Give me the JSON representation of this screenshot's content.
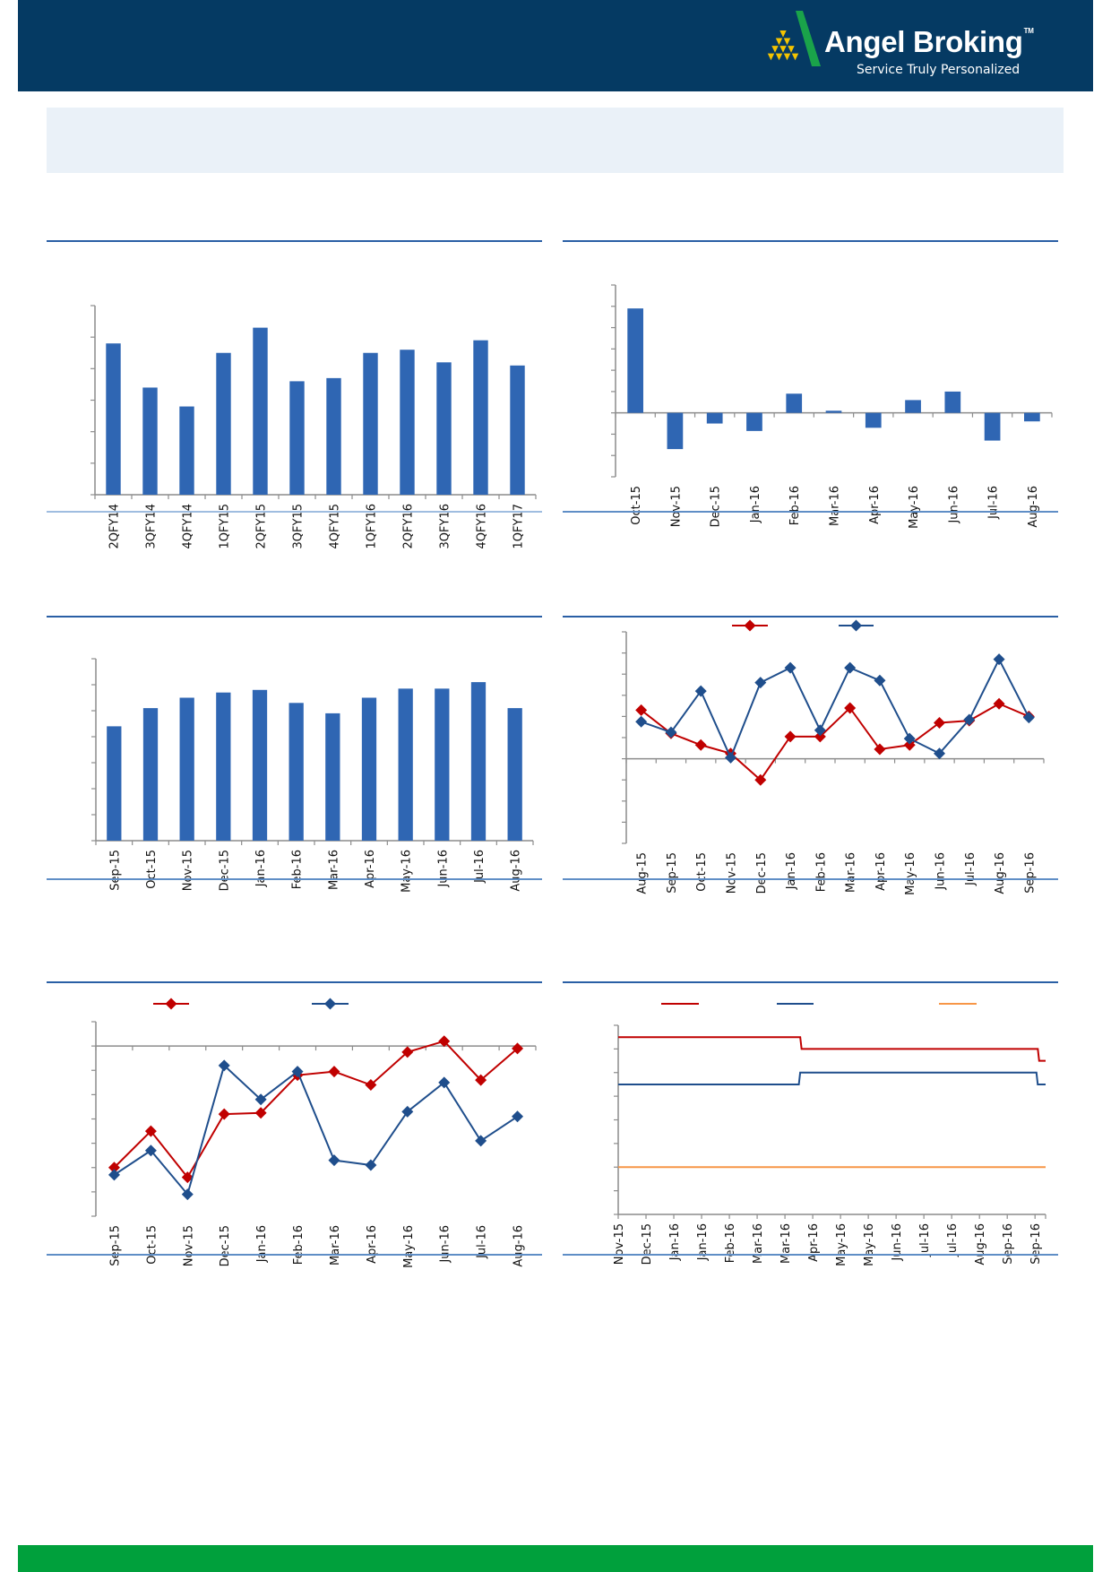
{
  "header": {
    "brand": "Angel Broking",
    "trademark": "TM",
    "tagline": "Service Truly Personalized",
    "colors": {
      "background": "#053a63",
      "logo_green": "#1aa34a",
      "logo_yellow": "#f5c400"
    }
  },
  "colors": {
    "bar": "#2f66b3",
    "red": "#c00000",
    "blue": "#1f4e8c",
    "orange": "#f79646",
    "footer": "#00a03c",
    "banner": "#eaf1f8"
  },
  "chart_data": [
    {
      "type": "bar",
      "categories": [
        "2QFY14",
        "3QFY14",
        "4QFY14",
        "1QFY15",
        "2QFY15",
        "3QFY15",
        "4QFY15",
        "1QFY16",
        "2QFY16",
        "3QFY16",
        "4QFY16",
        "1QFY17"
      ],
      "series": [
        {
          "color": "#2f66b3",
          "values": [
            4.8,
            3.4,
            2.8,
            4.5,
            5.3,
            3.6,
            3.7,
            4.5,
            4.6,
            4.2,
            4.9,
            4.1
          ]
        }
      ],
      "ylim": [
        0,
        6
      ],
      "yticks": 6,
      "grid": false
    },
    {
      "type": "bar",
      "categories": [
        "Oct-15",
        "Nov-15",
        "Dec-15",
        "Jan-16",
        "Feb-16",
        "Mar-16",
        "Apr-16",
        "May-16",
        "Jun-16",
        "Jul-16",
        "Aug-16"
      ],
      "series": [
        {
          "color": "#2f66b3",
          "values": [
            4.9,
            -1.7,
            -0.5,
            -0.85,
            0.9,
            0.1,
            -0.7,
            0.6,
            1.0,
            -1.3,
            -0.4
          ]
        }
      ],
      "ylim": [
        -3,
        6
      ],
      "yticks": 9,
      "grid": false
    },
    {
      "type": "bar",
      "categories": [
        "Sep-15",
        "Oct-15",
        "Nov-15",
        "Dec-15",
        "Jan-16",
        "Feb-16",
        "Mar-16",
        "Apr-16",
        "May-16",
        "Jun-16",
        "Jul-16",
        "Aug-16"
      ],
      "series": [
        {
          "color": "#2f66b3",
          "values": [
            4.4,
            5.1,
            5.5,
            5.7,
            5.8,
            5.3,
            4.9,
            5.5,
            5.85,
            5.85,
            6.1,
            5.1
          ]
        }
      ],
      "ylim": [
        0,
        7
      ],
      "yticks": 7,
      "grid": false
    },
    {
      "type": "line",
      "categories": [
        "Aug-15",
        "Sep-15",
        "Oct-15",
        "Nov-15",
        "Dec-15",
        "Jan-16",
        "Feb-16",
        "Mar-16",
        "Apr-16",
        "May-16",
        "Jun-16",
        "Jul-16",
        "Aug-16",
        "Sep-16"
      ],
      "series": [
        {
          "color": "#c00000",
          "values": [
            2.3,
            1.2,
            0.65,
            0.25,
            -1.0,
            1.05,
            1.05,
            2.4,
            0.45,
            0.65,
            1.7,
            1.8,
            2.6,
            2.0
          ]
        },
        {
          "color": "#1f4e8c",
          "values": [
            1.75,
            1.25,
            3.2,
            0.05,
            3.6,
            4.3,
            1.35,
            4.3,
            3.7,
            0.95,
            0.25,
            1.85,
            4.7,
            1.95
          ]
        }
      ],
      "ylim": [
        -4,
        6
      ],
      "yticks": 10,
      "grid": false,
      "legend": "top-center"
    },
    {
      "type": "line",
      "categories": [
        "Sep-15",
        "Oct-15",
        "Nov-15",
        "Dec-15",
        "Jan-16",
        "Feb-16",
        "Mar-16",
        "Apr-16",
        "May-16",
        "Jun-16",
        "Jul-16",
        "Aug-16"
      ],
      "series": [
        {
          "color": "#c00000",
          "values": [
            -5.0,
            -3.5,
            -5.4,
            -2.8,
            -2.75,
            -1.2,
            -1.05,
            -1.6,
            -0.25,
            0.2,
            -1.4,
            -0.1
          ]
        },
        {
          "color": "#1f4e8c",
          "values": [
            -5.3,
            -4.3,
            -6.1,
            -0.8,
            -2.2,
            -1.05,
            -4.7,
            -4.9,
            -2.7,
            -1.5,
            -3.9,
            -2.9
          ]
        }
      ],
      "ylim": [
        -7,
        1
      ],
      "yticks": 8,
      "grid": false,
      "legend": "top-left"
    },
    {
      "type": "line",
      "categories": [
        "Nov-15",
        "Dec-15",
        "Jan-16",
        "Jan-16",
        "Feb-16",
        "Mar-16",
        "Mar-16",
        "Apr-16",
        "May-16",
        "May-16",
        "Jun-16",
        "Jul-16",
        "Jul-16",
        "Aug-16",
        "Sep-16",
        "Sep-16"
      ],
      "series": [
        {
          "color": "#c00000",
          "steps": [
            [
              0,
              6.75
            ],
            [
              6.55,
              6.5
            ],
            [
              15.1,
              6.25
            ]
          ]
        },
        {
          "color": "#1f4e8c",
          "steps": [
            [
              0,
              5.75
            ],
            [
              6.5,
              6.0
            ],
            [
              15.05,
              5.75
            ]
          ]
        },
        {
          "color": "#f79646",
          "steps": [
            [
              0,
              4.0
            ]
          ]
        }
      ],
      "ylim": [
        3,
        7
      ],
      "yticks": 8,
      "grid": false,
      "legend": "top"
    }
  ]
}
